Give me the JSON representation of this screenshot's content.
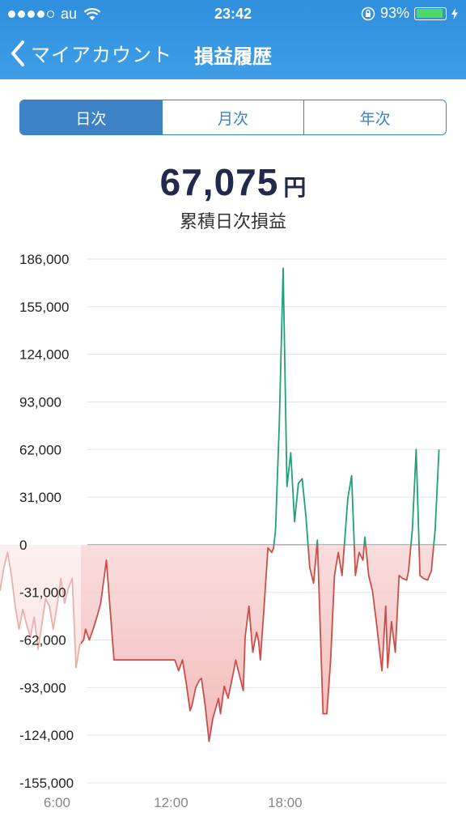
{
  "status_bar": {
    "carrier": "au",
    "time": "23:42",
    "battery_percent": "93%",
    "battery_level": 0.93,
    "signal_bars": 4,
    "signal_max": 5
  },
  "nav": {
    "back_label": "マイアカウント",
    "title": "損益履歴"
  },
  "segments": [
    {
      "label": "日次",
      "active": true
    },
    {
      "label": "月次",
      "active": false
    },
    {
      "label": "年次",
      "active": false
    }
  ],
  "summary": {
    "value": "67,075",
    "unit": "円",
    "label": "累積日次損益"
  },
  "colors": {
    "header": "#3a97e2",
    "accent": "#3c82c4",
    "profit_line": "#21a07c",
    "loss_line": "#c9504a",
    "loss_fill": "#f6c8c8",
    "value_text": "#22294a"
  },
  "chart_data": {
    "type": "line",
    "title": "",
    "xlabel": "",
    "ylabel": "",
    "xlim": [
      3,
      26.5
    ],
    "ylim": [
      -155000,
      186000
    ],
    "x_ticks": [
      {
        "x": 6,
        "label": "6:00"
      },
      {
        "x": 12,
        "label": "12:00"
      },
      {
        "x": 18,
        "label": "18:00"
      }
    ],
    "y_ticks": [
      {
        "y": 186000,
        "label": "186,000"
      },
      {
        "y": 155000,
        "label": "155,000"
      },
      {
        "y": 124000,
        "label": "124,000"
      },
      {
        "y": 93000,
        "label": "93,000"
      },
      {
        "y": 62000,
        "label": "62,000"
      },
      {
        "y": 31000,
        "label": "31,000"
      },
      {
        "y": 0,
        "label": "0"
      },
      {
        "y": -31000,
        "label": "-31,000"
      },
      {
        "y": -62000,
        "label": "-62,000"
      },
      {
        "y": -93000,
        "label": "-93,000"
      },
      {
        "y": -124000,
        "label": "-124,000"
      },
      {
        "y": -155000,
        "label": "-155,000"
      }
    ],
    "grid": true,
    "series": [
      {
        "x": [
          3.0,
          3.2,
          3.4,
          3.6,
          3.8,
          4.0,
          4.2,
          4.4,
          4.6,
          4.8,
          5.0,
          5.2,
          5.4,
          5.6,
          5.8,
          6.0,
          6.2,
          6.4,
          6.6,
          6.8,
          7.0,
          7.2,
          7.4,
          7.5,
          7.7,
          7.9,
          8.1,
          8.3,
          8.6,
          9.0,
          9.5,
          10.0,
          10.5,
          11.0,
          11.5,
          11.8,
          12.0,
          12.2,
          12.4,
          12.6,
          12.8,
          13.0,
          13.1,
          13.3,
          13.5,
          13.6,
          13.8,
          14.0,
          14.2,
          14.5,
          14.6,
          14.8,
          15.0,
          15.2,
          15.3,
          15.4,
          15.6,
          15.8,
          15.9,
          16.1,
          16.3,
          16.5,
          16.6,
          16.7,
          16.9,
          17.1,
          17.3,
          17.4,
          17.5,
          17.7,
          17.9,
          18.1,
          18.3,
          18.5,
          18.7,
          18.9,
          19.1,
          19.3,
          19.5,
          19.7,
          20.0,
          20.2,
          20.4,
          20.6,
          20.8,
          21.0,
          21.3,
          21.5,
          21.7,
          21.9,
          22.1,
          22.2,
          22.4,
          22.6,
          22.8,
          23.1,
          23.3,
          23.4,
          23.6,
          23.8,
          24.0,
          24.2,
          24.4,
          24.5,
          24.7,
          24.9,
          25.1,
          25.3,
          25.5,
          25.7,
          25.9,
          26.1
        ],
        "y": [
          -30000,
          -15000,
          -5000,
          -20000,
          -40000,
          -55000,
          -42000,
          -52000,
          -60000,
          -47000,
          -68000,
          -52000,
          -35000,
          -40000,
          -55000,
          -40000,
          -22000,
          -38000,
          -28000,
          -22000,
          -80000,
          -65000,
          -62000,
          -55000,
          -62000,
          -55000,
          -47000,
          -38000,
          -10000,
          -75000,
          -75000,
          -75000,
          -75000,
          -75000,
          -75000,
          -75000,
          -75000,
          -75000,
          -82000,
          -75000,
          -90000,
          -108000,
          -105000,
          -93000,
          -88000,
          -87000,
          -105000,
          -128000,
          -113000,
          -100000,
          -110000,
          -92000,
          -100000,
          -88000,
          -82000,
          -75000,
          -85000,
          -95000,
          -60000,
          -40000,
          -70000,
          -57000,
          -62000,
          -75000,
          -40000,
          -2000,
          -5000,
          -2000,
          10000,
          80000,
          180000,
          38000,
          60000,
          15000,
          40000,
          43000,
          18000,
          -15000,
          -25000,
          3000,
          -110000,
          -110000,
          -75000,
          -20000,
          -5000,
          -20000,
          30000,
          45000,
          -20000,
          -5000,
          -10000,
          5000,
          -20000,
          -30000,
          -50000,
          -82000,
          -40000,
          -80000,
          -50000,
          -70000,
          -20000,
          -22000,
          -23000,
          -17000,
          10000,
          62000,
          -20000,
          -22000,
          -23000,
          -17000,
          10000,
          62000
        ],
        "name": ""
      }
    ]
  }
}
